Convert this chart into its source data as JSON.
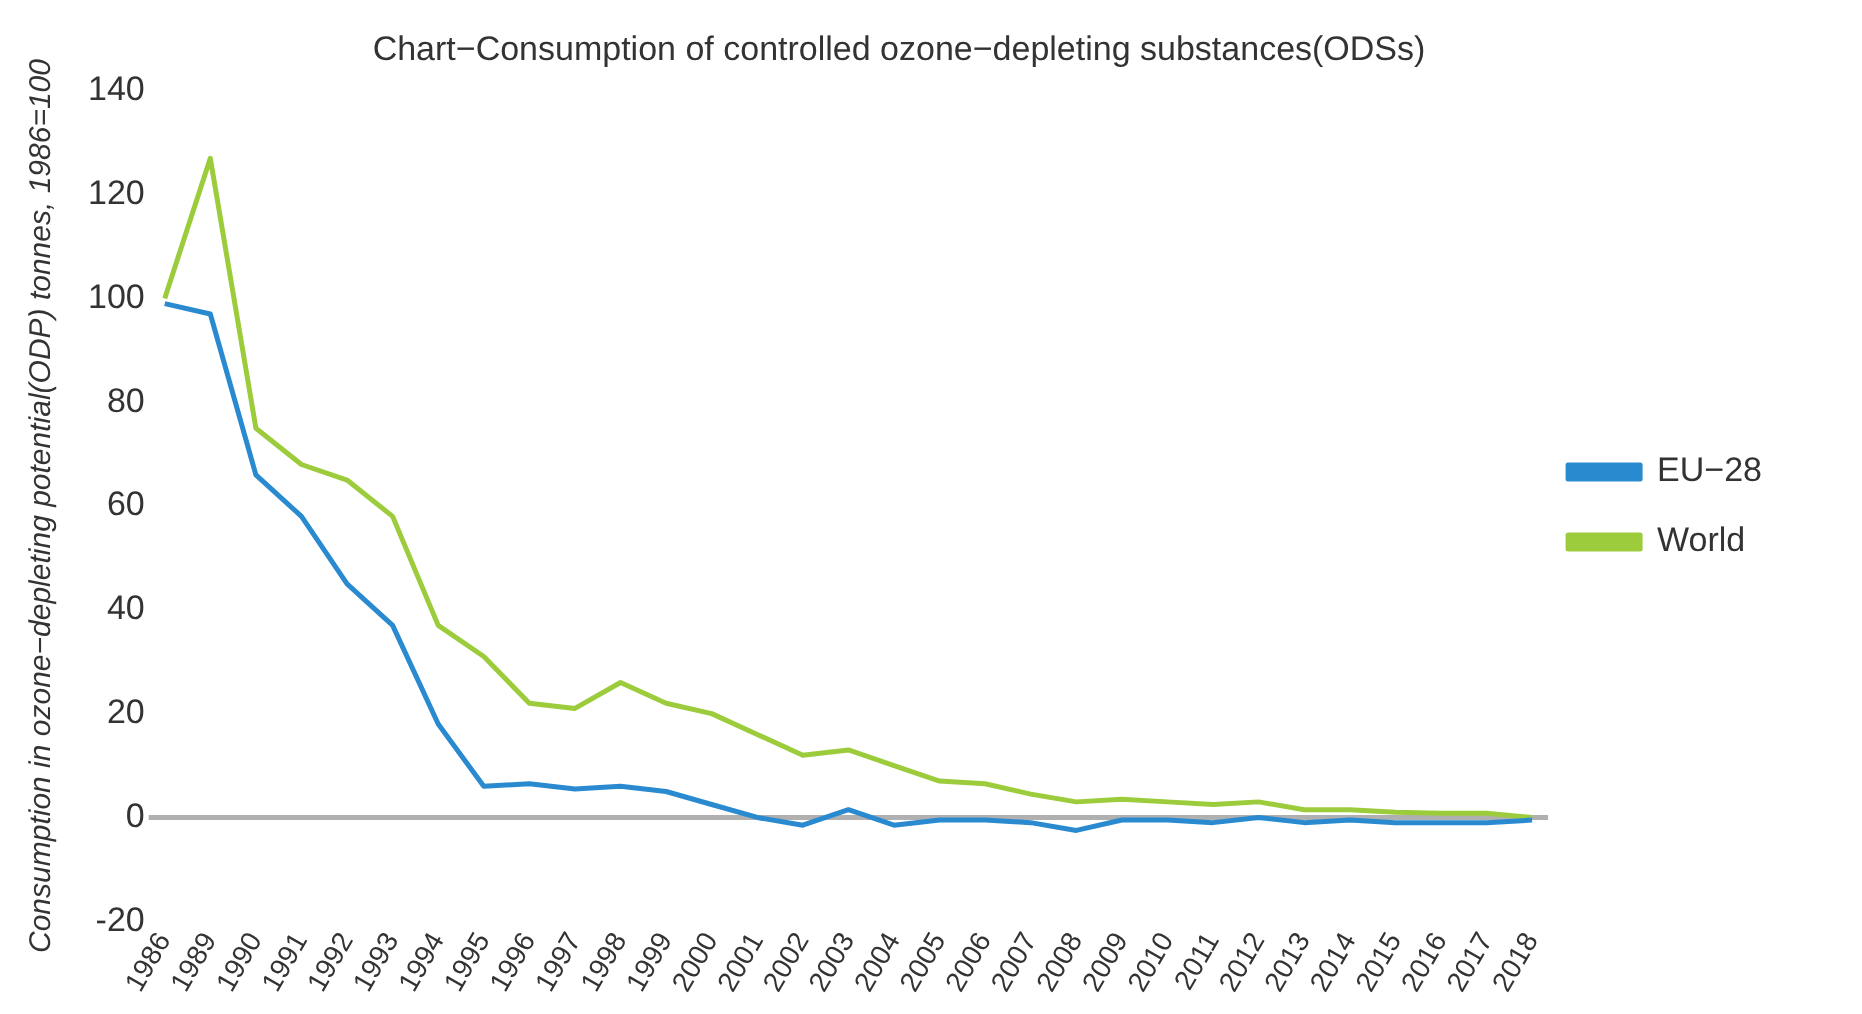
{
  "chart_data": {
    "type": "line",
    "title": "Chart−Consumption of controlled ozone−depleting substances(ODSs)",
    "ylabel": "Consumption in ozone−depleting potential(ODP) tonnes, 1986=100",
    "categories": [
      "1986",
      "1989",
      "1990",
      "1991",
      "1992",
      "1993",
      "1994",
      "1995",
      "1996",
      "1997",
      "1998",
      "1999",
      "2000",
      "2001",
      "2002",
      "2003",
      "2004",
      "2005",
      "2006",
      "2007",
      "2008",
      "2009",
      "2010",
      "2011",
      "2012",
      "2013",
      "2014",
      "2015",
      "2016",
      "2017",
      "2018"
    ],
    "series": [
      {
        "name": "EU−28",
        "color": "#2a8ad0",
        "values": [
          99,
          97,
          66,
          58,
          45,
          37,
          18,
          6,
          6.5,
          5.5,
          6,
          5,
          2.5,
          0,
          -1.5,
          1.5,
          -1.5,
          -0.5,
          -0.5,
          -1,
          -2.5,
          -0.5,
          -0.5,
          -1,
          0,
          -1,
          -0.5,
          -1,
          -1,
          -1,
          -0.5
        ]
      },
      {
        "name": "World",
        "color": "#9ccc3c",
        "values": [
          100,
          127,
          75,
          68,
          65,
          58,
          37,
          31,
          22,
          21,
          26,
          22,
          20,
          16,
          12,
          13,
          10,
          7,
          6.5,
          4.5,
          3,
          3.5,
          3,
          2.5,
          3,
          1.5,
          1.5,
          1,
          0.8,
          0.8,
          0
        ]
      }
    ],
    "ylim": [
      -20,
      140
    ],
    "yticks": [
      -20,
      0,
      20,
      40,
      60,
      80,
      100,
      120,
      140
    ],
    "grid": false,
    "legend": "right",
    "marker": "none",
    "line_style": "solid",
    "ref_lines": [
      {
        "axis": "y",
        "value": 0,
        "color": "#b0b0b0"
      }
    ]
  }
}
